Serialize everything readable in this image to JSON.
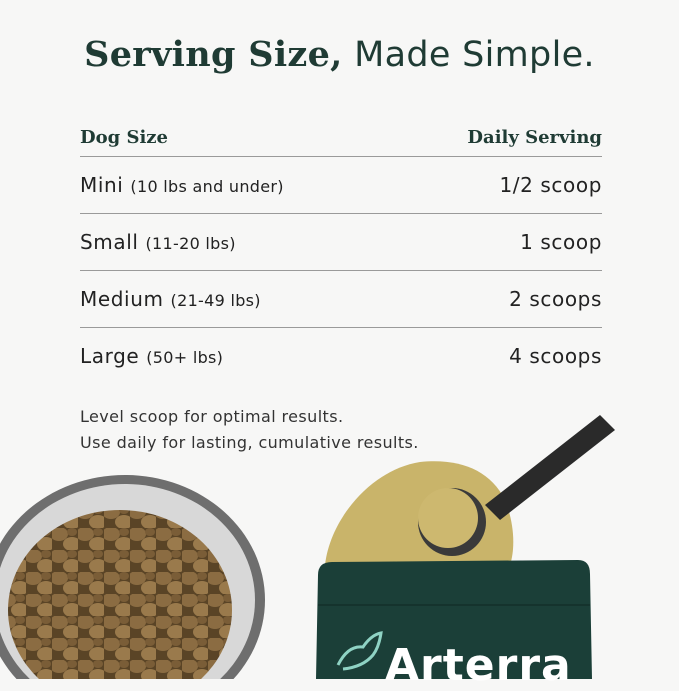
{
  "title": {
    "bold": "Serving Size,",
    "light": "Made Simple."
  },
  "table": {
    "headers": {
      "size": "Dog Size",
      "serving": "Daily Serving"
    },
    "rows": [
      {
        "size": "Mini",
        "range": "(10 lbs and under)",
        "serving": "1/2 scoop"
      },
      {
        "size": "Small",
        "range": "(11-20 lbs)",
        "serving": "1 scoop"
      },
      {
        "size": "Medium",
        "range": "(21-49 lbs)",
        "serving": "2 scoops"
      },
      {
        "size": "Large",
        "range": "(50+ lbs)",
        "serving": "4 scoops"
      }
    ]
  },
  "notes": [
    "Level scoop for optimal results.",
    "Use daily for lasting, cumulative results."
  ],
  "product": {
    "brand": "Arterra"
  },
  "colors": {
    "brand_green": "#1f3b34",
    "bag": "#1b3f38",
    "powder": "#c9b46a"
  }
}
